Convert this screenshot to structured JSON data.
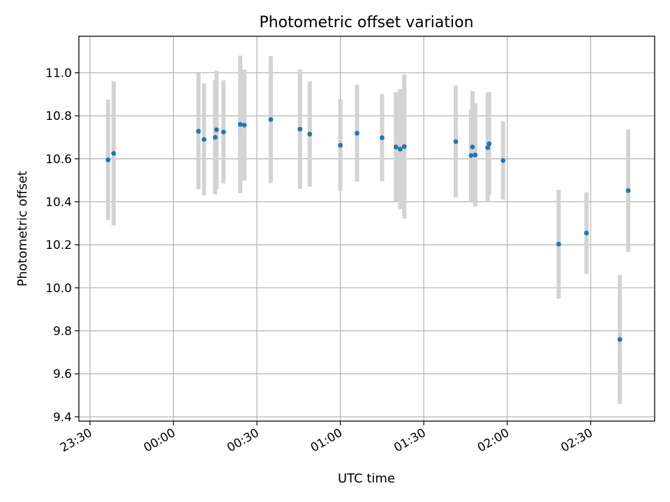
{
  "chart_data": {
    "type": "scatter",
    "title": "Photometric offset variation",
    "xlabel": "UTC time",
    "ylabel": "Photometric offset",
    "x_axis": {
      "kind": "time",
      "range": [
        "23:26",
        "02:53"
      ],
      "ticks": [
        "23:30",
        "00:00",
        "00:30",
        "01:00",
        "01:30",
        "02:00",
        "02:30"
      ]
    },
    "y_axis": {
      "range": [
        9.38,
        11.17
      ],
      "ticks": [
        "9.4",
        "9.6",
        "9.8",
        "10.0",
        "10.2",
        "10.4",
        "10.6",
        "10.8",
        "11.0"
      ]
    },
    "grid": true,
    "colors": {
      "marker": "#1f77b4",
      "errorbar": "#d3d3d3"
    },
    "series": [
      {
        "points": [
          {
            "t": "23:36:30",
            "y": 10.595,
            "err": 0.28
          },
          {
            "t": "23:38:30",
            "y": 10.625,
            "err": 0.335
          },
          {
            "t": "00:09:00",
            "y": 10.728,
            "err": 0.27
          },
          {
            "t": "00:11:00",
            "y": 10.69,
            "err": 0.26
          },
          {
            "t": "00:15:00",
            "y": 10.7,
            "err": 0.265
          },
          {
            "t": "00:15:30",
            "y": 10.735,
            "err": 0.275
          },
          {
            "t": "00:18:00",
            "y": 10.725,
            "err": 0.24
          },
          {
            "t": "00:24:00",
            "y": 10.76,
            "err": 0.32
          },
          {
            "t": "00:25:30",
            "y": 10.757,
            "err": 0.258
          },
          {
            "t": "00:35:00",
            "y": 10.783,
            "err": 0.295
          },
          {
            "t": "00:45:30",
            "y": 10.738,
            "err": 0.278
          },
          {
            "t": "00:49:00",
            "y": 10.715,
            "err": 0.245
          },
          {
            "t": "01:00:00",
            "y": 10.663,
            "err": 0.213
          },
          {
            "t": "01:06:00",
            "y": 10.719,
            "err": 0.225
          },
          {
            "t": "01:15:00",
            "y": 10.698,
            "err": 0.203
          },
          {
            "t": "01:20:00",
            "y": 10.655,
            "err": 0.255
          },
          {
            "t": "01:21:30",
            "y": 10.645,
            "err": 0.28
          },
          {
            "t": "01:23:00",
            "y": 10.657,
            "err": 0.335
          },
          {
            "t": "01:41:30",
            "y": 10.68,
            "err": 0.26
          },
          {
            "t": "01:47:00",
            "y": 10.615,
            "err": 0.215
          },
          {
            "t": "01:47:30",
            "y": 10.655,
            "err": 0.26
          },
          {
            "t": "01:48:30",
            "y": 10.618,
            "err": 0.24
          },
          {
            "t": "01:53:00",
            "y": 10.652,
            "err": 0.255
          },
          {
            "t": "01:53:30",
            "y": 10.67,
            "err": 0.24
          },
          {
            "t": "01:58:30",
            "y": 10.592,
            "err": 0.182
          },
          {
            "t": "02:18:30",
            "y": 10.203,
            "err": 0.253
          },
          {
            "t": "02:28:30",
            "y": 10.255,
            "err": 0.19
          },
          {
            "t": "02:40:30",
            "y": 9.76,
            "err": 0.3
          },
          {
            "t": "02:43:30",
            "y": 10.452,
            "err": 0.285
          }
        ]
      }
    ]
  }
}
